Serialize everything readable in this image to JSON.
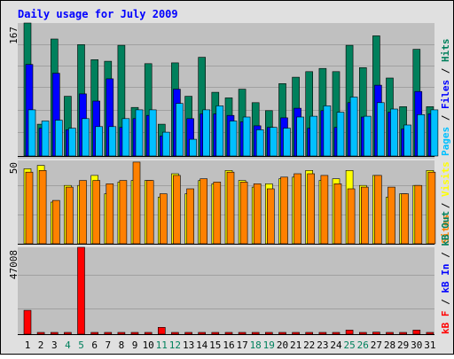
{
  "title": "Daily usage for July 2009",
  "colors": {
    "frame_bg": "#e0e0e0",
    "panel_bg": "#c0c0c0",
    "title": "#0000ff",
    "weekend_label": "#00805c",
    "weekday_label": "#000000",
    "hits": "#00805c",
    "files": "#0000ff",
    "pages": "#00c0ff",
    "visits": "#ffff00",
    "sites": "#ff8000",
    "kb_in": "#0000ff",
    "kb_out": "#00805c",
    "kb_f": "#ff0000"
  },
  "chart_data": [
    {
      "type": "bar",
      "panel": "top",
      "y_tick_label": "167",
      "ylim": [
        0,
        167
      ],
      "legend": [
        {
          "name": "Pages",
          "color": "#00c0ff"
        },
        {
          "name": "/",
          "color": "#000000"
        },
        {
          "name": "Files",
          "color": "#0000ff"
        },
        {
          "name": "/",
          "color": "#000000"
        },
        {
          "name": "Hits",
          "color": "#00805c"
        }
      ],
      "categories": [
        "1",
        "2",
        "3",
        "4",
        "5",
        "6",
        "7",
        "8",
        "9",
        "10",
        "11",
        "12",
        "13",
        "14",
        "15",
        "16",
        "17",
        "18",
        "19",
        "20",
        "21",
        "22",
        "23",
        "24",
        "25",
        "26",
        "27",
        "28",
        "29",
        "30",
        "31"
      ],
      "series": [
        {
          "name": "Hits",
          "values": [
            167,
            40,
            147,
            75,
            140,
            121,
            119,
            139,
            61,
            116,
            40,
            117,
            75,
            124,
            80,
            73,
            84,
            67,
            57,
            91,
            99,
            106,
            110,
            106,
            139,
            111,
            151,
            98,
            62,
            134,
            62
          ]
        },
        {
          "name": "Files",
          "values": [
            115,
            35,
            104,
            33,
            78,
            69,
            97,
            36,
            47,
            51,
            25,
            84,
            47,
            53,
            53,
            51,
            43,
            38,
            36,
            48,
            60,
            35,
            57,
            36,
            67,
            49,
            89,
            55,
            34,
            81,
            53
          ]
        },
        {
          "name": "Pages",
          "values": [
            58,
            44,
            45,
            35,
            47,
            37,
            37,
            47,
            58,
            58,
            30,
            66,
            21,
            58,
            63,
            44,
            49,
            33,
            36,
            35,
            49,
            50,
            63,
            55,
            74,
            50,
            67,
            59,
            39,
            52,
            58
          ]
        }
      ]
    },
    {
      "type": "bar",
      "panel": "middle",
      "y_tick_label": "50",
      "ylim": [
        0,
        50
      ],
      "legend": [
        {
          "name": "Sites",
          "color": "#ff8000"
        },
        {
          "name": "/",
          "color": "#000000"
        },
        {
          "name": "Visits",
          "color": "#ffff00"
        }
      ],
      "categories": [
        "1",
        "2",
        "3",
        "4",
        "5",
        "6",
        "7",
        "8",
        "9",
        "10",
        "11",
        "12",
        "13",
        "14",
        "15",
        "16",
        "17",
        "18",
        "19",
        "20",
        "21",
        "22",
        "23",
        "24",
        "25",
        "26",
        "27",
        "28",
        "29",
        "30",
        "31"
      ],
      "series": [
        {
          "name": "Visits",
          "values": [
            45,
            47,
            25,
            35,
            35,
            41,
            30,
            37,
            38,
            38,
            28,
            42,
            30,
            38,
            36,
            44,
            38,
            34,
            36,
            39,
            40,
            44,
            38,
            39,
            44,
            35,
            41,
            28,
            30,
            35,
            44
          ]
        },
        {
          "name": "Sites",
          "values": [
            43,
            44,
            26,
            34,
            38,
            38,
            36,
            38,
            49,
            38,
            30,
            41,
            33,
            39,
            37,
            43,
            37,
            36,
            33,
            40,
            42,
            42,
            41,
            36,
            33,
            34,
            41,
            34,
            30,
            35,
            43
          ]
        }
      ]
    },
    {
      "type": "bar",
      "panel": "bottom",
      "y_tick_label": "47008",
      "ylim": [
        0,
        47008
      ],
      "legend": [
        {
          "name": "kB F",
          "color": "#ff0000"
        },
        {
          "name": "/",
          "color": "#000000"
        },
        {
          "name": "kB In",
          "color": "#0000ff"
        },
        {
          "name": "/",
          "color": "#000000"
        },
        {
          "name": "kB Out",
          "color": "#00805c"
        }
      ],
      "categories": [
        "1",
        "2",
        "3",
        "4",
        "5",
        "6",
        "7",
        "8",
        "9",
        "10",
        "11",
        "12",
        "13",
        "14",
        "15",
        "16",
        "17",
        "18",
        "19",
        "20",
        "21",
        "22",
        "23",
        "24",
        "25",
        "26",
        "27",
        "28",
        "29",
        "30",
        "31"
      ],
      "series": [
        {
          "name": "kB F",
          "values": [
            12900,
            500,
            800,
            500,
            47008,
            900,
            900,
            900,
            500,
            500,
            3700,
            500,
            900,
            900,
            500,
            500,
            500,
            500,
            500,
            500,
            500,
            500,
            500,
            500,
            2200,
            500,
            1100,
            900,
            500,
            2200,
            900
          ]
        }
      ]
    }
  ],
  "x_labels": [
    {
      "label": "1",
      "weekend": false
    },
    {
      "label": "2",
      "weekend": false
    },
    {
      "label": "3",
      "weekend": false
    },
    {
      "label": "4",
      "weekend": true
    },
    {
      "label": "5",
      "weekend": true
    },
    {
      "label": "6",
      "weekend": false
    },
    {
      "label": "7",
      "weekend": false
    },
    {
      "label": "8",
      "weekend": false
    },
    {
      "label": "9",
      "weekend": false
    },
    {
      "label": "10",
      "weekend": false
    },
    {
      "label": "11",
      "weekend": true
    },
    {
      "label": "12",
      "weekend": true
    },
    {
      "label": "13",
      "weekend": false
    },
    {
      "label": "14",
      "weekend": false
    },
    {
      "label": "15",
      "weekend": false
    },
    {
      "label": "16",
      "weekend": false
    },
    {
      "label": "17",
      "weekend": false
    },
    {
      "label": "18",
      "weekend": true
    },
    {
      "label": "19",
      "weekend": true
    },
    {
      "label": "20",
      "weekend": false
    },
    {
      "label": "21",
      "weekend": false
    },
    {
      "label": "22",
      "weekend": false
    },
    {
      "label": "23",
      "weekend": false
    },
    {
      "label": "24",
      "weekend": false
    },
    {
      "label": "25",
      "weekend": true
    },
    {
      "label": "26",
      "weekend": true
    },
    {
      "label": "27",
      "weekend": false
    },
    {
      "label": "28",
      "weekend": false
    },
    {
      "label": "29",
      "weekend": false
    },
    {
      "label": "30",
      "weekend": false
    },
    {
      "label": "31",
      "weekend": false
    }
  ]
}
